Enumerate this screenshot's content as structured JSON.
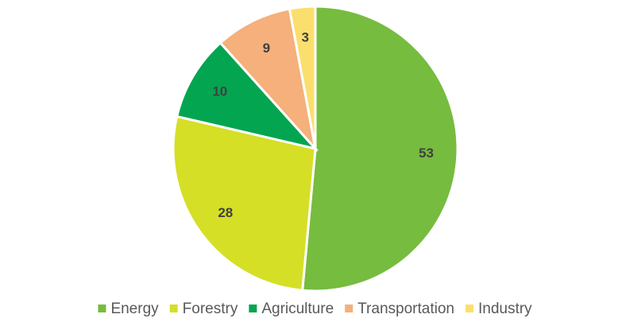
{
  "chart_data": {
    "type": "pie",
    "categories": [
      "Energy",
      "Forestry",
      "Agriculture",
      "Transportation",
      "Industry"
    ],
    "values": [
      53,
      28,
      10,
      9,
      3
    ],
    "colors": [
      "#76bc3f",
      "#d5df26",
      "#04a550",
      "#f5b07b",
      "#fadf6e"
    ],
    "legend": "bottom"
  }
}
